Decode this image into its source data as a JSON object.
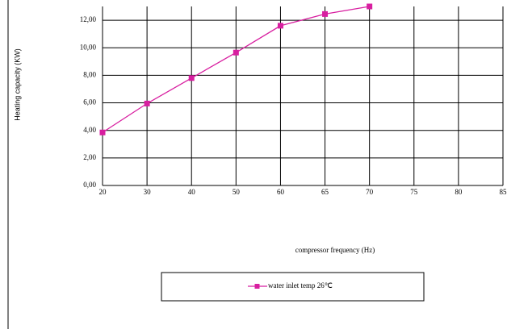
{
  "chart_data": {
    "type": "line",
    "y_axis_label": "Heating capacity (KW)",
    "x_axis_label": "compressor frequency (Hz)",
    "categories": [
      20,
      30,
      40,
      50,
      60,
      65,
      70,
      75,
      80,
      85
    ],
    "series": [
      {
        "name": "water inlet temp 26℃",
        "color": "#d81fa0",
        "values": [
          3.85,
          5.95,
          7.8,
          9.65,
          11.6,
          12.45,
          13.0,
          null,
          null,
          null
        ]
      }
    ],
    "ylim": [
      0,
      13
    ],
    "yticks": [
      {
        "value": 0,
        "label": "0,00"
      },
      {
        "value": 2,
        "label": "2,00"
      },
      {
        "value": 4,
        "label": "4,00"
      },
      {
        "value": 6,
        "label": "6,00"
      },
      {
        "value": 8,
        "label": "8,00"
      },
      {
        "value": 10,
        "label": "10,00"
      },
      {
        "value": 12,
        "label": "12,00"
      }
    ],
    "grid": true
  }
}
